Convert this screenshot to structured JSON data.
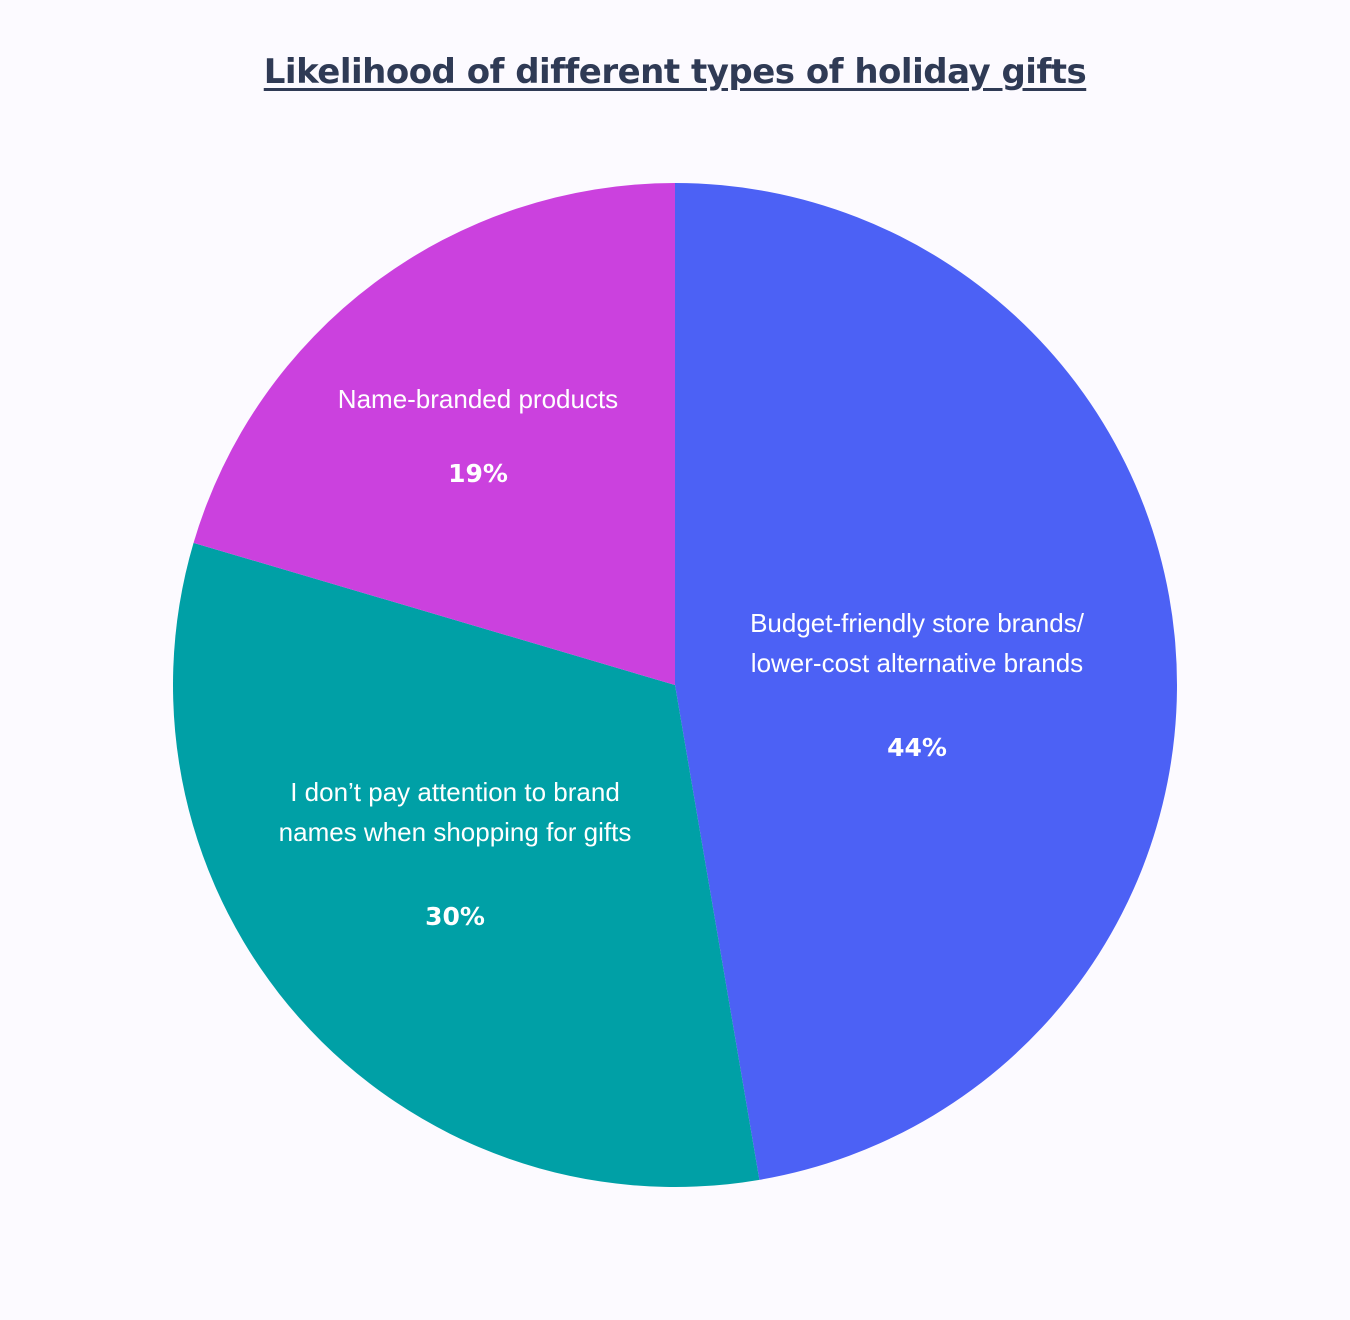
{
  "chart_data": {
    "type": "pie",
    "title": "Likelihood of different types of holiday gifts",
    "slices": [
      {
        "label_lines": [
          "Budget-friendly store brands/",
          "lower-cost alternative brands"
        ],
        "value": 44,
        "value_label": "44%",
        "color": "#4c61f5"
      },
      {
        "label_lines": [
          "I don’t pay attention to brand",
          "names when shopping for gifts"
        ],
        "value": 30,
        "value_label": "30%",
        "color": "#00a0a6"
      },
      {
        "label_lines": [
          "Name-branded products"
        ],
        "value": 19,
        "value_label": "19%",
        "color": "#cb41de"
      }
    ],
    "start_angle": "12 o'clock",
    "direction": "clockwise",
    "legend": "none"
  }
}
